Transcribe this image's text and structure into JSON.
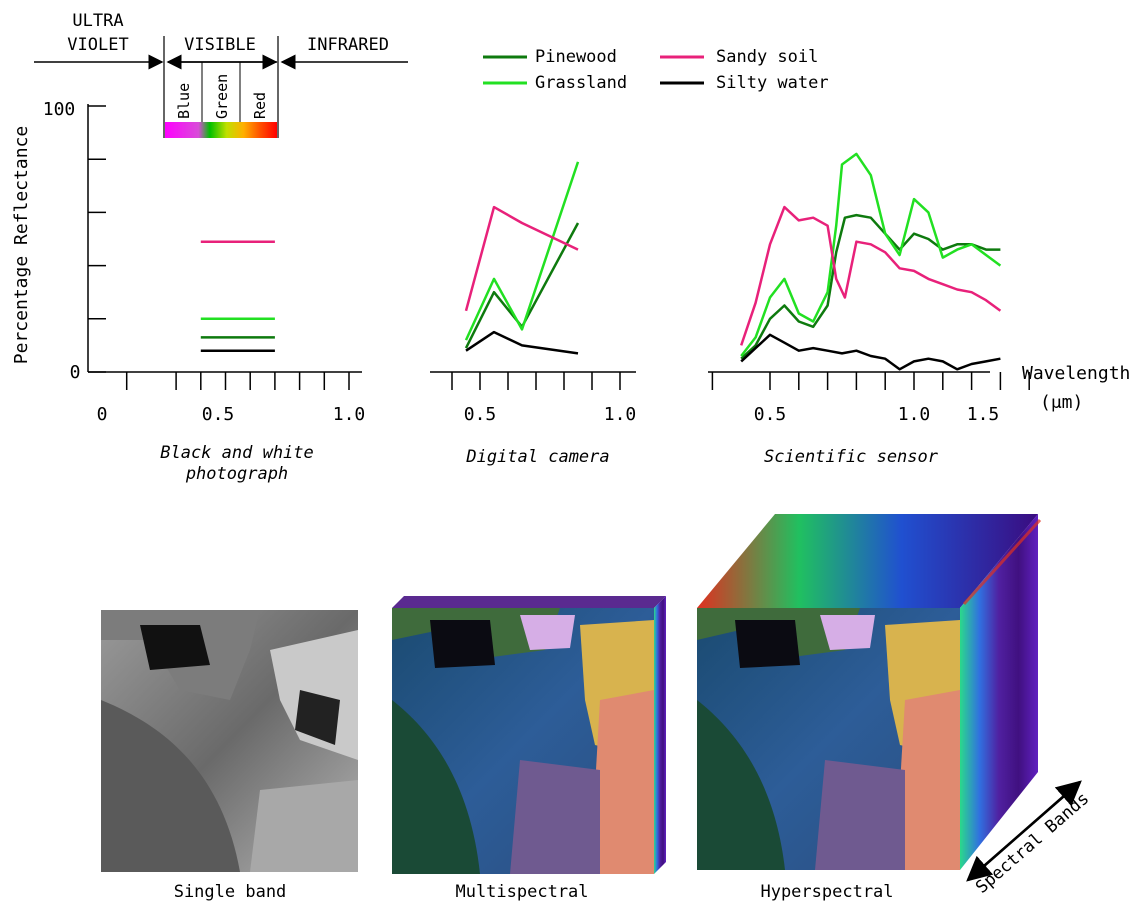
{
  "spectrum": {
    "uv_line1": "ULTRA",
    "uv_line2": "VIOLET",
    "visible": "VISIBLE",
    "infrared": "INFRARED",
    "band_blue": "Blue",
    "band_green": "Green",
    "band_red": "Red"
  },
  "legend": {
    "items": [
      {
        "label": "Pinewood",
        "color": "#0e7a0e"
      },
      {
        "label": "Grassland",
        "color": "#22e022"
      },
      {
        "label": "Sandy soil",
        "color": "#e8217a"
      },
      {
        "label": "Silty water",
        "color": "#000000"
      }
    ]
  },
  "axes": {
    "ylabel": "Percentage Reflectance",
    "y_top": "100",
    "y_zero": "0",
    "xlabel_line1": "Wavelength",
    "xlabel_line2": "(μm)",
    "panel1_ticks": [
      "0",
      "0.5",
      "1.0"
    ],
    "panel2_ticks": [
      "0.5",
      "1.0"
    ],
    "panel3_ticks": [
      "0.5",
      "1.0",
      "1.5"
    ]
  },
  "captions": {
    "bw_line1": "Black and white",
    "bw_line2": "photograph",
    "digital": "Digital camera",
    "scientific": "Scientific sensor",
    "single": "Single band",
    "multi": "Multispectral",
    "hyper": "Hyperspectral",
    "bands": "Spectral Bands"
  },
  "chart_data": [
    {
      "type": "line",
      "title": "Black and white photograph",
      "ylabel": "Percentage Reflectance",
      "ylim": [
        0,
        100
      ],
      "series": [
        {
          "name": "Pinewood",
          "x": [
            0.4,
            0.7
          ],
          "y": [
            13,
            13
          ]
        },
        {
          "name": "Grassland",
          "x": [
            0.4,
            0.7
          ],
          "y": [
            20,
            20
          ]
        },
        {
          "name": "Sandy soil",
          "x": [
            0.4,
            0.7
          ],
          "y": [
            49,
            49
          ]
        },
        {
          "name": "Silty water",
          "x": [
            0.4,
            0.7
          ],
          "y": [
            8,
            8
          ]
        }
      ]
    },
    {
      "type": "line",
      "title": "Digital camera",
      "ylim": [
        0,
        100
      ],
      "series": [
        {
          "name": "Pinewood",
          "x": [
            0.45,
            0.55,
            0.65,
            0.85
          ],
          "y": [
            9,
            30,
            17,
            56
          ]
        },
        {
          "name": "Grassland",
          "x": [
            0.45,
            0.55,
            0.65,
            0.85
          ],
          "y": [
            12,
            35,
            16,
            79
          ]
        },
        {
          "name": "Sandy soil",
          "x": [
            0.45,
            0.55,
            0.65,
            0.85
          ],
          "y": [
            23,
            62,
            56,
            46
          ]
        },
        {
          "name": "Silty water",
          "x": [
            0.45,
            0.55,
            0.65,
            0.85
          ],
          "y": [
            8,
            15,
            10,
            7
          ]
        }
      ]
    },
    {
      "type": "line",
      "title": "Scientific sensor",
      "xlabel": "Wavelength (μm)",
      "ylim": [
        0,
        100
      ],
      "series": [
        {
          "name": "Pinewood",
          "x": [
            0.4,
            0.45,
            0.5,
            0.55,
            0.6,
            0.65,
            0.7,
            0.73,
            0.76,
            0.8,
            0.85,
            0.9,
            0.95,
            1.0,
            1.05,
            1.1,
            1.15,
            1.2,
            1.25,
            1.3
          ],
          "y": [
            5,
            10,
            20,
            25,
            19,
            17,
            25,
            45,
            58,
            59,
            58,
            52,
            46,
            52,
            50,
            46,
            48,
            48,
            46,
            46
          ]
        },
        {
          "name": "Grassland",
          "x": [
            0.4,
            0.45,
            0.5,
            0.55,
            0.6,
            0.65,
            0.7,
            0.73,
            0.75,
            0.8,
            0.85,
            0.9,
            0.95,
            1.0,
            1.05,
            1.1,
            1.15,
            1.2,
            1.25,
            1.3
          ],
          "y": [
            6,
            13,
            28,
            35,
            22,
            19,
            30,
            55,
            78,
            82,
            74,
            52,
            44,
            65,
            60,
            43,
            46,
            48,
            44,
            40
          ]
        },
        {
          "name": "Sandy soil",
          "x": [
            0.4,
            0.45,
            0.5,
            0.55,
            0.6,
            0.65,
            0.7,
            0.73,
            0.76,
            0.8,
            0.85,
            0.9,
            0.95,
            1.0,
            1.05,
            1.1,
            1.15,
            1.2,
            1.25,
            1.3
          ],
          "y": [
            10,
            26,
            48,
            62,
            57,
            58,
            55,
            35,
            28,
            49,
            48,
            45,
            39,
            38,
            35,
            33,
            31,
            30,
            27,
            23
          ]
        },
        {
          "name": "Silty water",
          "x": [
            0.4,
            0.45,
            0.5,
            0.55,
            0.6,
            0.65,
            0.7,
            0.75,
            0.8,
            0.85,
            0.9,
            0.95,
            1.0,
            1.05,
            1.1,
            1.15,
            1.2,
            1.25,
            1.3
          ],
          "y": [
            4,
            9,
            14,
            11,
            8,
            9,
            8,
            7,
            8,
            6,
            5,
            1,
            4,
            5,
            4,
            1,
            3,
            4,
            5
          ]
        }
      ]
    }
  ]
}
